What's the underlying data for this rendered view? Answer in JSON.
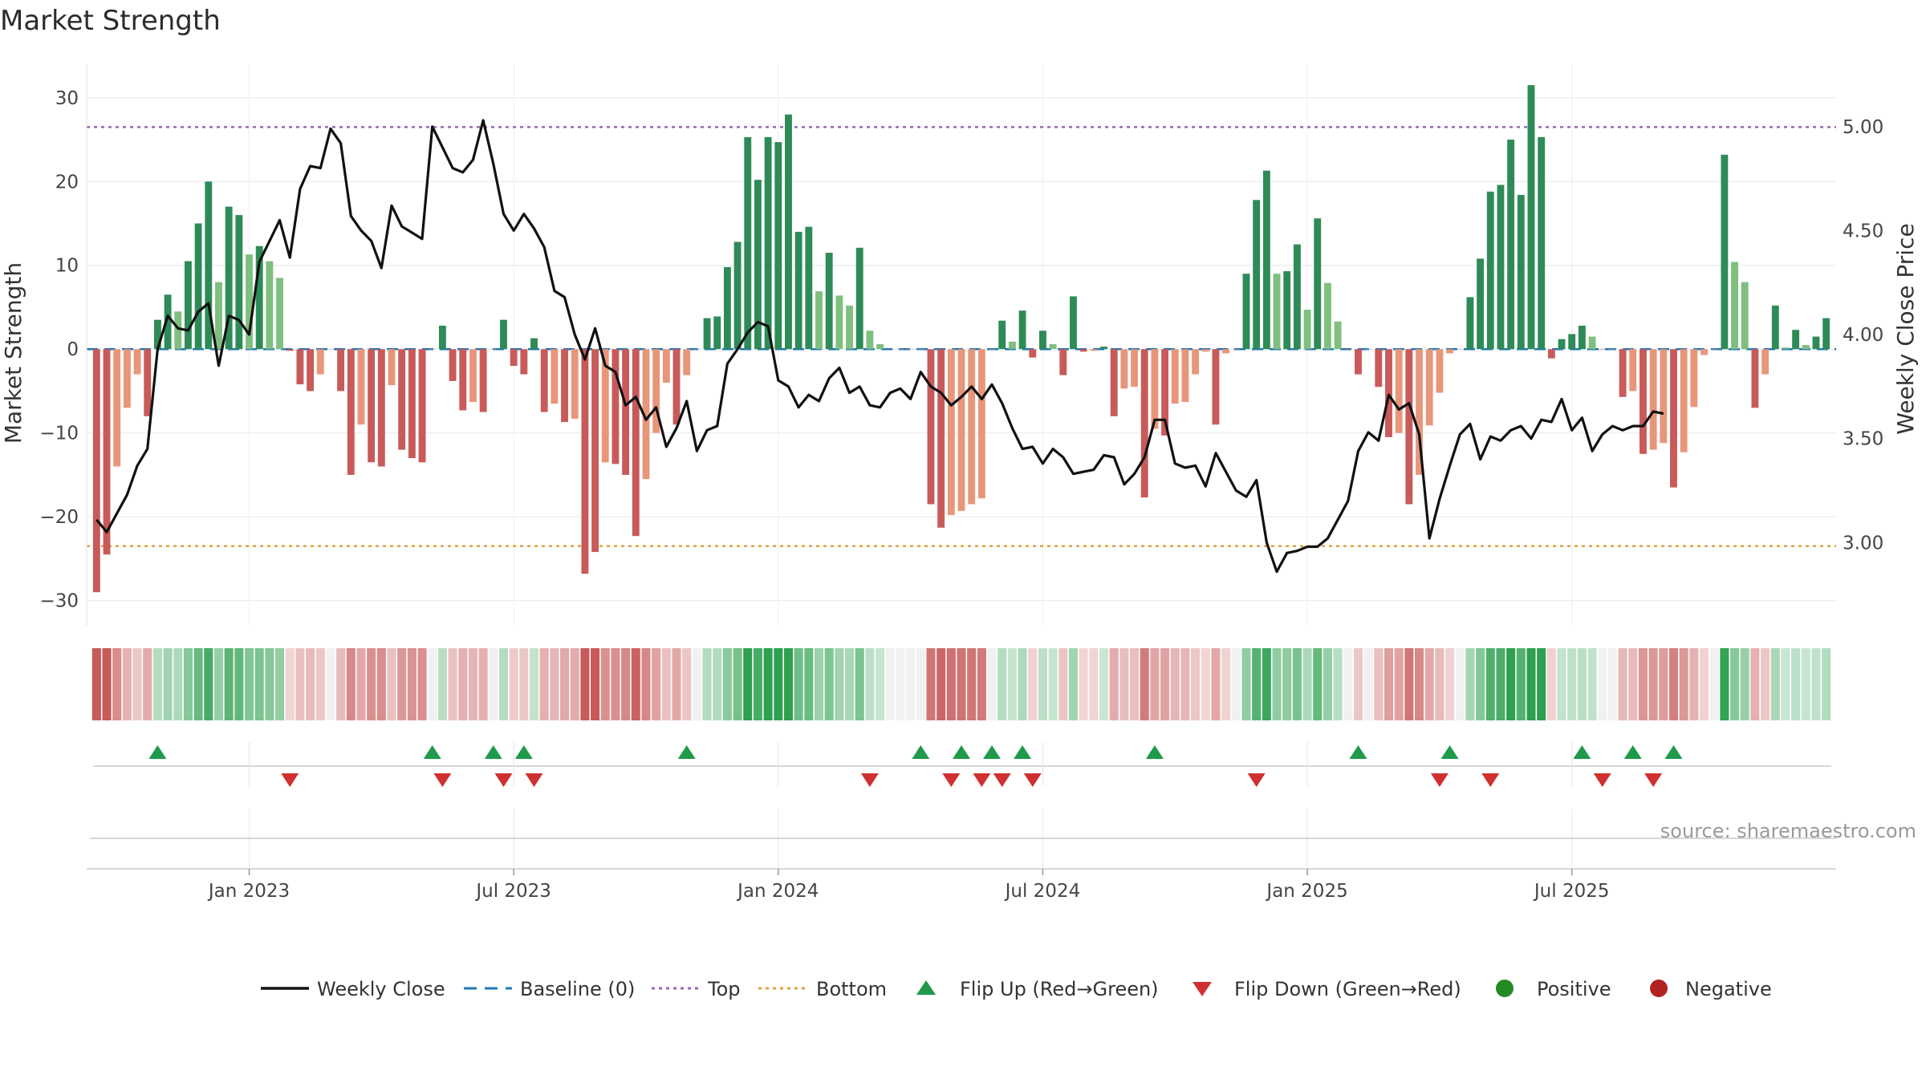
{
  "title": "Market Strength",
  "source": "source: sharemaestro.com",
  "colors": {
    "strong_green": "#2e8b57",
    "light_green": "#7fbf7f",
    "strong_red": "#c85a5a",
    "light_red": "#e8967a",
    "baseline": "#1f77b4",
    "top": "#9467bd",
    "bottom": "#e0a040",
    "close": "#111111",
    "flip_up": "#1e9a4a",
    "flip_down": "#d03030",
    "positive": "#228b22",
    "negative": "#b22222"
  },
  "chart_data": {
    "type": "bar",
    "title": "Market Strength",
    "ylabel": "Market Strength",
    "ylabel_right": "Weekly Close Price",
    "ylim": [
      -33,
      34
    ],
    "ylim_right": [
      2.6,
      5.3
    ],
    "yticks": [
      -30,
      -20,
      -10,
      0,
      10,
      20,
      30
    ],
    "yticks_right": [
      3.0,
      3.5,
      4.0,
      4.5,
      5.0
    ],
    "ytick_labels": [
      "−30",
      "−20",
      "−10",
      "0",
      "10",
      "20",
      "30"
    ],
    "ytick_labels_right": [
      "3.00",
      "3.50",
      "4.00",
      "4.50",
      "5.00"
    ],
    "top_line": 26.5,
    "bottom_line": -23.5,
    "x_range_weeks": [
      0,
      157
    ],
    "xticks": [
      {
        "label": "Jan 2023",
        "week": 15
      },
      {
        "label": "Jul 2023",
        "week": 41
      },
      {
        "label": "Jan 2024",
        "week": 67
      },
      {
        "label": "Jul 2024",
        "week": 93
      },
      {
        "label": "Jan 2025",
        "week": 119
      },
      {
        "label": "Jul 2025",
        "week": 145
      }
    ],
    "strength": [
      -29,
      -24.5,
      -14,
      -7,
      -3,
      -8,
      3.5,
      6.5,
      4.5,
      10.5,
      15,
      20,
      8,
      17,
      16,
      11.3,
      12.3,
      10.5,
      8.5,
      -0.2,
      -4.2,
      -5,
      -3,
      0,
      -5,
      -15,
      -9,
      -13.5,
      -14,
      -4.3,
      -12,
      -13,
      -13.5,
      0,
      2.8,
      -3.8,
      -7.3,
      -6.3,
      -7.5,
      0,
      3.5,
      -2,
      -3,
      1.3,
      -7.5,
      -6.5,
      -8.7,
      -8.3,
      -26.8,
      -24.2,
      -13.5,
      -13.7,
      -15,
      -22.3,
      -15.5,
      -10,
      -4,
      -9,
      -3.1,
      0,
      3.7,
      3.9,
      9.8,
      12.8,
      25.3,
      20.2,
      25.3,
      24.7,
      28,
      14,
      14.6,
      6.9,
      11.5,
      6.4,
      5.2,
      12.1,
      2.2,
      0.6,
      0,
      0,
      0,
      0,
      -18.5,
      -21.3,
      -19.8,
      -19.3,
      -18.5,
      -17.8,
      0,
      3.4,
      0.9,
      4.6,
      -1,
      2.2,
      0.6,
      -3.1,
      6.3,
      -0.3,
      -0.2,
      0.3,
      -8,
      -4.7,
      -4.5,
      -17.7,
      -9.5,
      -10.3,
      -6.5,
      -6.3,
      -3,
      -0.3,
      -9,
      -0.5,
      0,
      9,
      17.8,
      21.3,
      9,
      9.3,
      12.5,
      4.7,
      15.6,
      7.9,
      3.3,
      0,
      -3,
      0,
      -4.5,
      -10.5,
      -10,
      -18.5,
      -15,
      -9.1,
      -5.2,
      -0.5,
      0,
      6.2,
      10.8,
      18.8,
      19.6,
      25,
      18.4,
      31.5,
      25.3,
      -1.1,
      1.2,
      1.8,
      2.8,
      1.5,
      0,
      0,
      -5.7,
      -5,
      -12.5,
      -12,
      -11.2,
      -16.5,
      -12.3,
      -6.9,
      -0.7,
      0,
      23.2,
      10.4,
      8,
      -7,
      -3,
      5.2,
      0.2,
      2.3,
      0.5,
      1.5,
      3.7
    ],
    "close": [
      3.11,
      3.05,
      3.14,
      3.23,
      3.37,
      3.45,
      3.93,
      4.09,
      4.03,
      4.02,
      4.11,
      4.15,
      3.85,
      4.09,
      4.07,
      4.0,
      4.35,
      4.45,
      4.55,
      4.37,
      4.7,
      4.81,
      4.8,
      4.99,
      4.92,
      4.57,
      4.5,
      4.45,
      4.32,
      4.62,
      4.52,
      4.49,
      4.46,
      5.0,
      4.9,
      4.8,
      4.78,
      4.84,
      5.03,
      4.82,
      4.58,
      4.5,
      4.58,
      4.51,
      4.42,
      4.21,
      4.18,
      4.0,
      3.88,
      4.03,
      3.85,
      3.82,
      3.66,
      3.7,
      3.59,
      3.65,
      3.46,
      3.55,
      3.68,
      3.44,
      3.54,
      3.56,
      3.86,
      3.93,
      4.01,
      4.06,
      4.04,
      3.78,
      3.75,
      3.65,
      3.71,
      3.68,
      3.79,
      3.84,
      3.72,
      3.75,
      3.66,
      3.65,
      3.72,
      3.74,
      3.69,
      3.82,
      3.75,
      3.72,
      3.66,
      3.7,
      3.75,
      3.69,
      3.76,
      3.67,
      3.55,
      3.45,
      3.46,
      3.38,
      3.45,
      3.41,
      3.33,
      3.34,
      3.35,
      3.42,
      3.41,
      3.28,
      3.33,
      3.41,
      3.59,
      3.59,
      3.38,
      3.36,
      3.37,
      3.27,
      3.43,
      3.34,
      3.25,
      3.22,
      3.3,
      3.0,
      2.86,
      2.95,
      2.96,
      2.98,
      2.98,
      3.02,
      3.11,
      3.2,
      3.44,
      3.53,
      3.49,
      3.71,
      3.64,
      3.67,
      3.52,
      3.02,
      3.21,
      3.37,
      3.52,
      3.57,
      3.4,
      3.51,
      3.49,
      3.54,
      3.56,
      3.5,
      3.59,
      3.58,
      3.69,
      3.54,
      3.6,
      3.44,
      3.52,
      3.56,
      3.54,
      3.56,
      3.56,
      3.63,
      3.62
    ],
    "shade": [
      -29,
      -24.5,
      -14,
      -7,
      -3,
      -8,
      3.5,
      6.5,
      4.5,
      10.5,
      15,
      20,
      8,
      17,
      16,
      11.3,
      12.3,
      10.5,
      8.5,
      -0.2,
      -4.2,
      -5,
      -3,
      0,
      -5,
      -15,
      -9,
      -13.5,
      -14,
      -4.3,
      -12,
      -13,
      -13.5,
      0,
      2.8,
      -3.8,
      -7.3,
      -6.3,
      -7.5,
      0,
      3.5,
      -2,
      -3,
      1.3,
      -7.5,
      -6.5,
      -8.7,
      -8.3,
      -26.8,
      -24.2,
      -13.5,
      -13.7,
      -15,
      -22.3,
      -15.5,
      -10,
      -4,
      -9,
      -3.1,
      0,
      3.7,
      3.9,
      9.8,
      12.8,
      25.3,
      20.2,
      25.3,
      24.7,
      28,
      14,
      14.6,
      6.9,
      11.5,
      6.4,
      5.2,
      12.1,
      2.2,
      0.6,
      0,
      0,
      0,
      0,
      -18.5,
      -21.3,
      -19.8,
      -19.3,
      -18.5,
      -17.8,
      0,
      3.4,
      0.9,
      4.6,
      -1,
      2.2,
      0.6,
      -3.1,
      6.3,
      -0.3,
      -0.2,
      0.3,
      -8,
      -4.7,
      -4.5,
      -17.7,
      -9.5,
      -10.3,
      -6.5,
      -6.3,
      -3,
      -0.3,
      -9,
      -0.5,
      0,
      9,
      17.8,
      21.3,
      9,
      9.3,
      12.5,
      4.7,
      15.6,
      7.9,
      3.3,
      0,
      -3,
      0,
      -4.5,
      -10.5,
      -10,
      -18.5,
      -15,
      -9.1,
      -5.2,
      -0.5,
      0,
      6.2,
      10.8,
      18.8,
      19.6,
      25,
      18.4,
      31.5,
      25.3,
      -1.1,
      1.2,
      1.8,
      2.8,
      1.5,
      0,
      0,
      -5.7,
      -5,
      -12.5,
      -12,
      -11.2,
      -16.5,
      -12.3,
      -6.9,
      -0.7,
      0,
      23.2,
      10.4,
      8,
      -7,
      -3,
      5.2,
      0.2,
      2.3,
      0.5,
      1.5,
      3.7
    ],
    "flip_up_weeks": [
      6,
      33,
      39,
      42,
      58,
      81,
      85,
      88,
      91,
      104,
      124,
      133,
      146,
      151,
      155
    ],
    "flip_down_weeks": [
      19,
      34,
      40,
      43,
      76,
      84,
      87,
      89,
      92,
      114,
      132,
      137,
      148,
      153
    ],
    "legend": [
      {
        "label": "Weekly Close",
        "kind": "line"
      },
      {
        "label": "Baseline (0)",
        "kind": "dash"
      },
      {
        "label": "Top",
        "kind": "dot-top"
      },
      {
        "label": "Bottom",
        "kind": "dot-bottom"
      },
      {
        "label": "Flip Up (Red→Green)",
        "kind": "tri-up"
      },
      {
        "label": "Flip Down (Green→Red)",
        "kind": "tri-down"
      },
      {
        "label": "Positive",
        "kind": "dot-pos"
      },
      {
        "label": "Negative",
        "kind": "dot-neg"
      }
    ]
  }
}
